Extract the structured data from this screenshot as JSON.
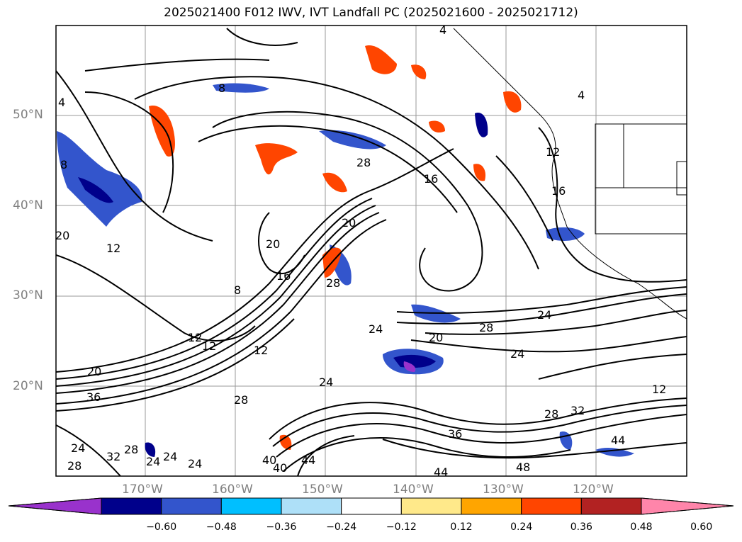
{
  "title": "2025021400 F012 IWV, IVT Landfall PC (2025021600 - 2025021712)",
  "lat_labels": [
    "50°N",
    "40°N",
    "30°N",
    "20°N"
  ],
  "lon_labels": [
    "170°W",
    "160°W",
    "150°W",
    "140°W",
    "130°W",
    "120°W"
  ],
  "contour_labels": [
    "8",
    "4",
    "8",
    "20",
    "12",
    "20",
    "12",
    "12",
    "20",
    "36",
    "28",
    "24",
    "24",
    "28",
    "28",
    "24",
    "32",
    "24",
    "24",
    "40",
    "40",
    "44",
    "16",
    "28",
    "20",
    "28",
    "12",
    "16",
    "16",
    "12",
    "28",
    "24",
    "20",
    "24",
    "24",
    "28",
    "32",
    "36",
    "44",
    "48",
    "44",
    "12",
    "4",
    "4",
    "8"
  ],
  "colorbar": {
    "ticks": [
      "−0.60",
      "−0.48",
      "−0.36",
      "−0.24",
      "−0.12",
      "0.12",
      "0.24",
      "0.36",
      "0.48",
      "0.60"
    ],
    "colors": [
      "#9932cc",
      "#00008b",
      "#3355cc",
      "#00bfff",
      "#aee0f8",
      "#ffffff",
      "#ffe98a",
      "#ffa500",
      "#ff4500",
      "#b22222",
      "#ff85aa"
    ]
  }
}
